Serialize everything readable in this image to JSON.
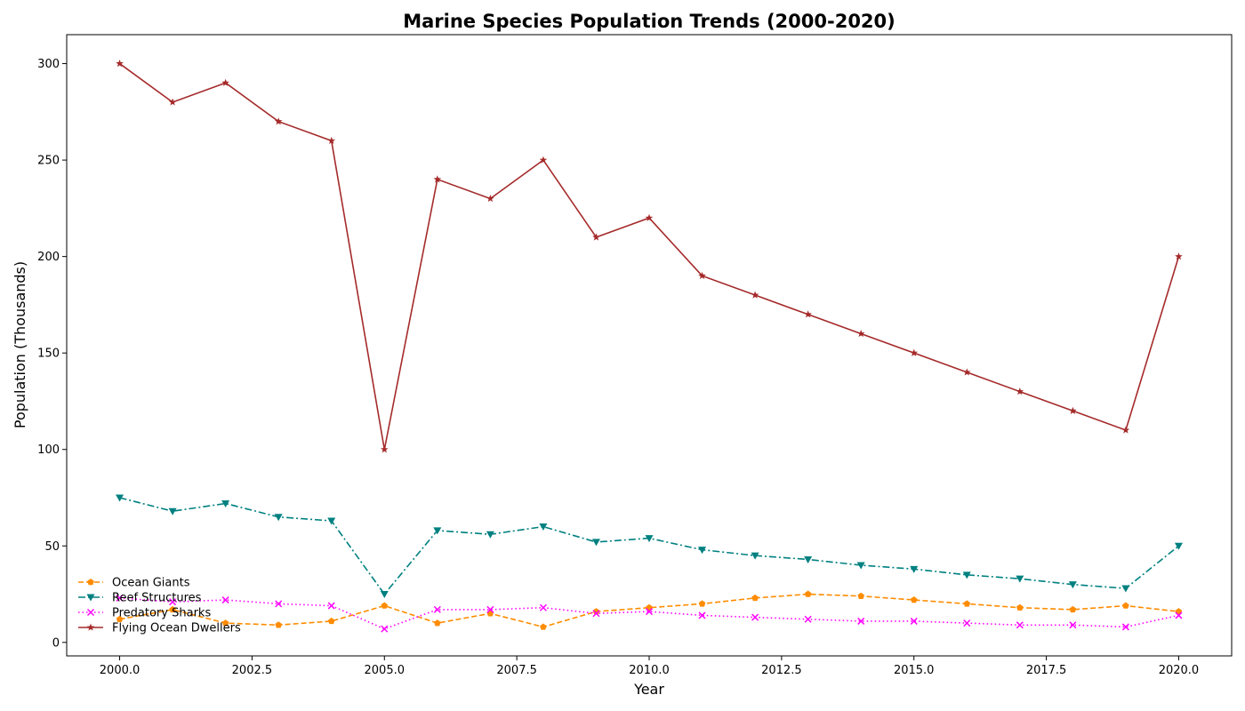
{
  "chart_data": {
    "type": "line",
    "title": "Marine Species Population Trends (2000-2020)",
    "xlabel": "Year",
    "ylabel": "Population (Thousands)",
    "xlim": [
      1999.0,
      2021.0
    ],
    "ylim": [
      -7,
      315
    ],
    "xticks": [
      2000.0,
      2002.5,
      2005.0,
      2007.5,
      2010.0,
      2012.5,
      2015.0,
      2017.5,
      2020.0
    ],
    "xtick_labels": [
      "2000.0",
      "2002.5",
      "2005.0",
      "2007.5",
      "2010.0",
      "2012.5",
      "2015.0",
      "2017.5",
      "2020.0"
    ],
    "yticks": [
      0,
      50,
      100,
      150,
      200,
      250,
      300
    ],
    "ytick_labels": [
      "0",
      "50",
      "100",
      "150",
      "200",
      "250",
      "300"
    ],
    "grid": false,
    "legend_position": "lower-left",
    "x": [
      2000,
      2001,
      2002,
      2003,
      2004,
      2005,
      2006,
      2007,
      2008,
      2009,
      2010,
      2011,
      2012,
      2013,
      2014,
      2015,
      2016,
      2017,
      2018,
      2019,
      2020
    ],
    "series": [
      {
        "name": "Ocean Giants",
        "color": "#ff8c00",
        "line_style": "dashed",
        "marker": "pentagon",
        "values": [
          12,
          17,
          10,
          9,
          11,
          19,
          10,
          15,
          8,
          16,
          18,
          20,
          23,
          25,
          24,
          22,
          20,
          18,
          17,
          19,
          16
        ]
      },
      {
        "name": "Reef Structures",
        "color": "#008080",
        "line_style": "dashdot",
        "marker": "triangle-down",
        "values": [
          75,
          68,
          72,
          65,
          63,
          25,
          58,
          56,
          60,
          52,
          54,
          48,
          45,
          43,
          40,
          38,
          35,
          33,
          30,
          28,
          50
        ]
      },
      {
        "name": "Predatory Sharks",
        "color": "#ff00ff",
        "line_style": "dotted",
        "marker": "x",
        "values": [
          23,
          21,
          22,
          20,
          19,
          7,
          17,
          17,
          18,
          15,
          16,
          14,
          13,
          12,
          11,
          11,
          10,
          9,
          9,
          8,
          14
        ]
      },
      {
        "name": "Flying Ocean Dwellers",
        "color": "#a52a2a",
        "line_style": "solid",
        "marker": "star",
        "values": [
          300,
          280,
          290,
          270,
          260,
          100,
          240,
          230,
          250,
          210,
          220,
          190,
          180,
          170,
          160,
          150,
          140,
          130,
          120,
          110,
          200
        ]
      }
    ]
  }
}
